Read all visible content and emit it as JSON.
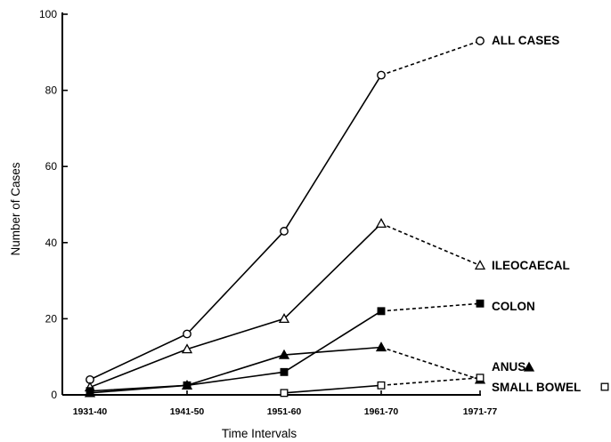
{
  "chart_data": {
    "type": "line",
    "categories": [
      "1931-40",
      "1941-50",
      "1951-60",
      "1961-70",
      "1971-77"
    ],
    "xlabel": "Time Intervals",
    "ylabel": "Number of Cases",
    "ylim": [
      0,
      100
    ],
    "yticks": [
      "0",
      "20",
      "40",
      "60",
      "80",
      "100"
    ],
    "grid": false,
    "series": [
      {
        "name": "ALL CASES",
        "marker": "circle-open",
        "values": [
          4,
          16,
          43,
          84,
          93
        ]
      },
      {
        "name": "ILEOCAECAL",
        "marker": "triangle-open",
        "values": [
          2,
          12,
          20,
          45,
          34
        ]
      },
      {
        "name": "COLON",
        "marker": "square-filled",
        "values": [
          1,
          2.5,
          6,
          22,
          24
        ]
      },
      {
        "name": "ANUS",
        "marker": "triangle-filled",
        "values": [
          0.5,
          2.5,
          10.5,
          12.5,
          4
        ]
      },
      {
        "name": "SMALL BOWEL",
        "marker": "square-open",
        "values": [
          null,
          null,
          0.5,
          2.5,
          4.5
        ]
      }
    ]
  }
}
